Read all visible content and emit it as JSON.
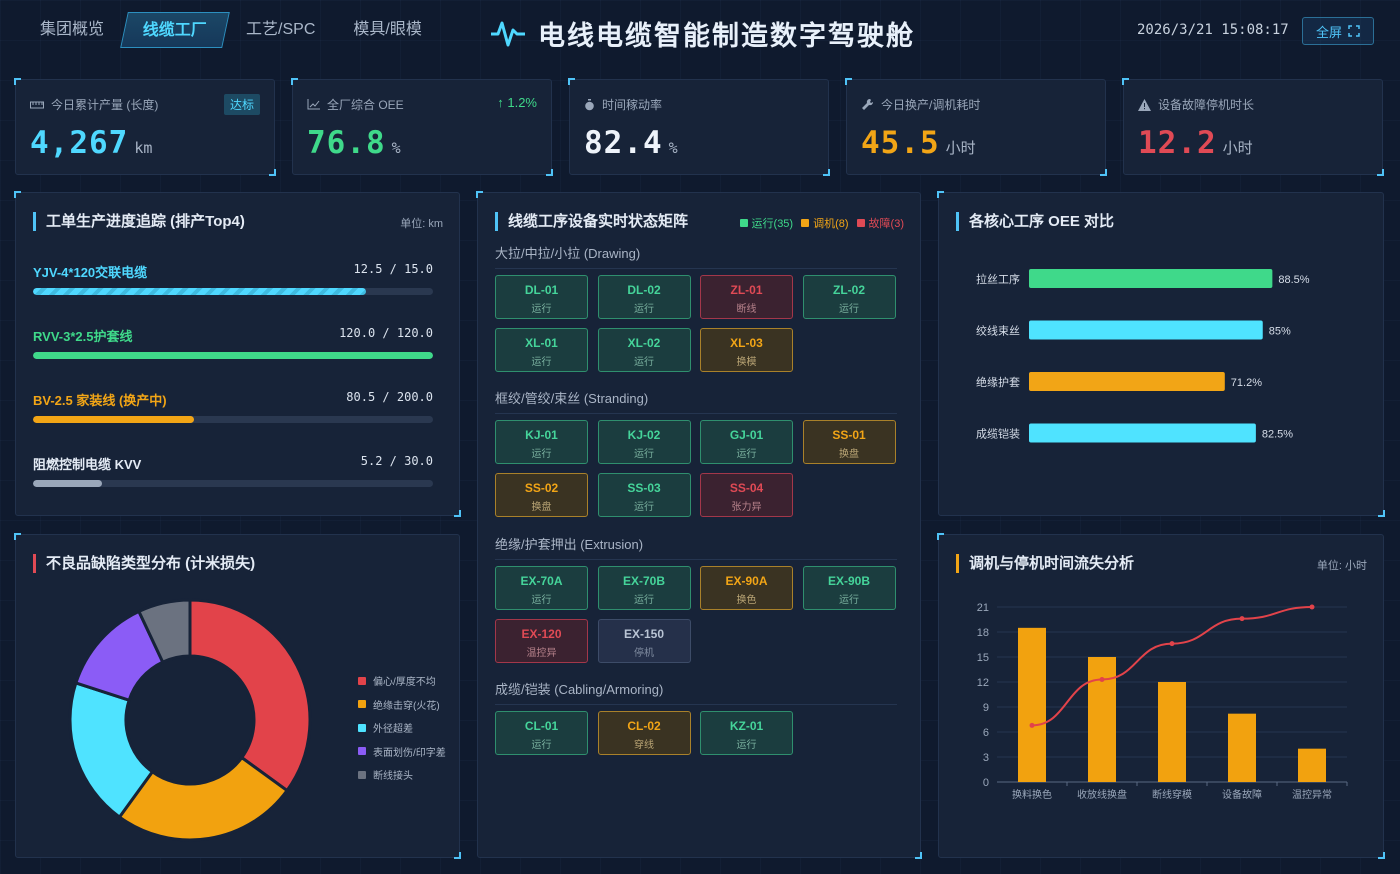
{
  "nav": {
    "tabs": [
      {
        "label": "集团概览"
      },
      {
        "label": "线缆工厂"
      },
      {
        "label": "工艺/SPC"
      },
      {
        "label": "模具/眼模"
      }
    ]
  },
  "header": {
    "title": "电线电缆智能制造数字驾驶舱",
    "datetime": "2026/3/21 15:08:17",
    "fullscreen_label": "全屏"
  },
  "kpis": [
    {
      "label": "今日累计产量 (长度)",
      "value": "4,267",
      "unit": "km",
      "badge": "达标",
      "color": "#4fd8ff",
      "icon": "ruler-icon"
    },
    {
      "label": "全厂综合 OEE",
      "value": "76.8",
      "unit": "%",
      "trend": "↑ 1.2%",
      "color": "#3fd98a",
      "icon": "chart-icon"
    },
    {
      "label": "时间稼动率",
      "value": "82.4",
      "unit": "%",
      "color": "#eef3fa",
      "icon": "stopwatch-icon"
    },
    {
      "label": "今日换产/调机耗时",
      "value": "45.5",
      "unit": "小时",
      "color": "#f2a516",
      "icon": "wrench-icon"
    },
    {
      "label": "设备故障停机时长",
      "value": "12.2",
      "unit": "小时",
      "color": "#e04a55",
      "icon": "warning-icon"
    }
  ],
  "progress_panel": {
    "title": "工单生产进度追踪 (排产Top4)",
    "unit": "单位: km",
    "orders": [
      {
        "name": "YJV-4*120交联电缆",
        "done": 12.5,
        "total": 15.0,
        "text": "12.5 / 15.0",
        "color": "#4fd8ff",
        "striped": true
      },
      {
        "name": "RVV-3*2.5护套线",
        "done": 120.0,
        "total": 120.0,
        "text": "120.0 / 120.0",
        "color": "#3fd98a"
      },
      {
        "name": "BV-2.5 家装线 (换产中)",
        "done": 80.5,
        "total": 200.0,
        "text": "80.5 / 200.0",
        "color": "#f2a516"
      },
      {
        "name": "阻燃控制电缆 KVV",
        "done": 5.2,
        "total": 30.0,
        "text": "5.2 / 30.0",
        "color": "#9aa7ba"
      }
    ]
  },
  "matrix_panel": {
    "title": "线缆工序设备实时状态矩阵",
    "legend": [
      {
        "label": "运行(35)",
        "color": "#3fd98a"
      },
      {
        "label": "调机(8)",
        "color": "#f2a516"
      },
      {
        "label": "故障(3)",
        "color": "#e04a55"
      }
    ],
    "groups": [
      {
        "title": "大拉/中拉/小拉 (Drawing)",
        "machines": [
          {
            "id": "DL-01",
            "status": "运行",
            "type": "run"
          },
          {
            "id": "DL-02",
            "status": "运行",
            "type": "run"
          },
          {
            "id": "ZL-01",
            "status": "断线",
            "type": "flt"
          },
          {
            "id": "ZL-02",
            "status": "运行",
            "type": "run"
          },
          {
            "id": "XL-01",
            "status": "运行",
            "type": "run"
          },
          {
            "id": "XL-02",
            "status": "运行",
            "type": "run"
          },
          {
            "id": "XL-03",
            "status": "换模",
            "type": "chg"
          }
        ]
      },
      {
        "title": "框绞/管绞/束丝 (Stranding)",
        "machines": [
          {
            "id": "KJ-01",
            "status": "运行",
            "type": "run"
          },
          {
            "id": "KJ-02",
            "status": "运行",
            "type": "run"
          },
          {
            "id": "GJ-01",
            "status": "运行",
            "type": "run"
          },
          {
            "id": "SS-01",
            "status": "换盘",
            "type": "chg"
          },
          {
            "id": "SS-02",
            "status": "换盘",
            "type": "chg"
          },
          {
            "id": "SS-03",
            "status": "运行",
            "type": "run"
          },
          {
            "id": "SS-04",
            "status": "张力异",
            "type": "flt"
          }
        ]
      },
      {
        "title": "绝缘/护套押出 (Extrusion)",
        "machines": [
          {
            "id": "EX-70A",
            "status": "运行",
            "type": "run"
          },
          {
            "id": "EX-70B",
            "status": "运行",
            "type": "run"
          },
          {
            "id": "EX-90A",
            "status": "换色",
            "type": "chg"
          },
          {
            "id": "EX-90B",
            "status": "运行",
            "type": "run"
          },
          {
            "id": "EX-120",
            "status": "温控异",
            "type": "flt"
          },
          {
            "id": "EX-150",
            "status": "停机",
            "type": "stop"
          }
        ]
      },
      {
        "title": "成缆/铠装 (Cabling/Armoring)",
        "machines": [
          {
            "id": "CL-01",
            "status": "运行",
            "type": "run"
          },
          {
            "id": "CL-02",
            "status": "穿线",
            "type": "chg"
          },
          {
            "id": "KZ-01",
            "status": "运行",
            "type": "run"
          }
        ]
      }
    ]
  },
  "oee_panel": {
    "title": "各核心工序 OEE 对比",
    "chart_data": {
      "type": "bar",
      "orientation": "horizontal",
      "categories": [
        "拉丝工序",
        "绞线束丝",
        "绝缘护套",
        "成缆铠装"
      ],
      "values": [
        88.5,
        85,
        71.2,
        82.5
      ],
      "value_labels": [
        "88.5%",
        "85%",
        "71.2%",
        "82.5%"
      ],
      "colors": [
        "#3fd98a",
        "#4fe3ff",
        "#f2a516",
        "#4fe3ff"
      ],
      "xlim": [
        0,
        100
      ]
    }
  },
  "defect_panel": {
    "title": "不良品缺陷类型分布 (计米损失)",
    "chart_data": {
      "type": "pie",
      "donut": true,
      "labels": [
        "偏心/厚度不均",
        "绝缘击穿(火花)",
        "外径超差",
        "表面划伤/印字差",
        "断线接头"
      ],
      "values": [
        35,
        25,
        20,
        13,
        7
      ],
      "colors": [
        "#e2434a",
        "#f2a20f",
        "#4fe3ff",
        "#8b5cf6",
        "#6b7280"
      ]
    }
  },
  "loss_panel": {
    "title": "调机与停机时间流失分析",
    "unit": "单位: 小时",
    "chart_data": {
      "type": "bar",
      "categories": [
        "换料换色",
        "收放线换盘",
        "断线穿模",
        "设备故障",
        "温控异常"
      ],
      "values": [
        18.5,
        15,
        12,
        8.2,
        4
      ],
      "line_values": [
        6.8,
        12.3,
        16.6,
        19.6,
        21
      ],
      "ylim": [
        0,
        21
      ],
      "yticks": [
        0,
        3,
        6,
        9,
        12,
        15,
        18,
        21
      ],
      "bar_color": "#f2a20f",
      "line_color": "#e2434a"
    }
  }
}
